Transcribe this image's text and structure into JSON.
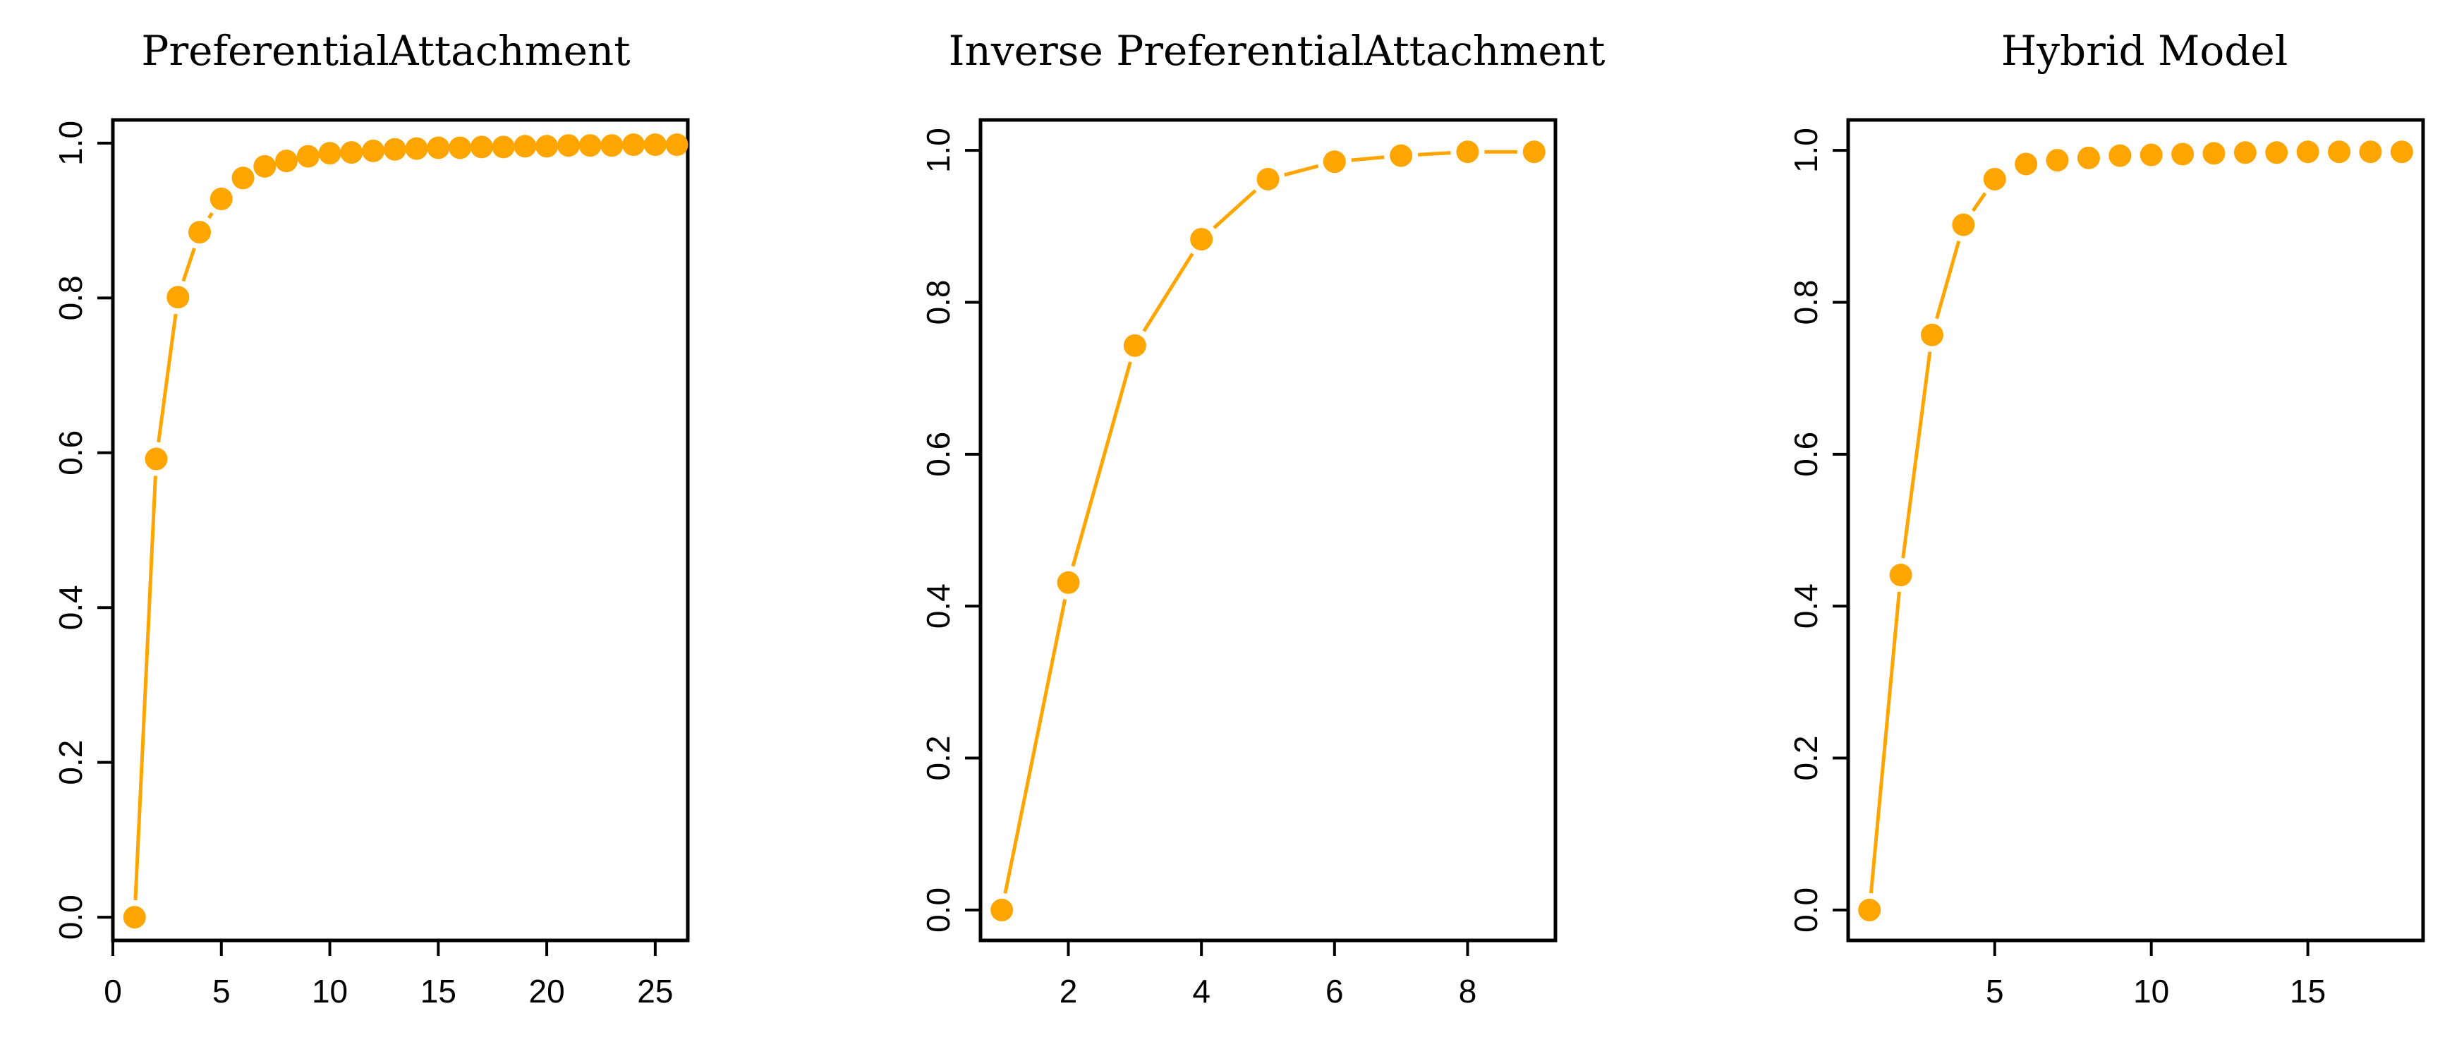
{
  "figure": {
    "marker_color": "#FFA500",
    "line_color": "#FFA500"
  },
  "chart_data": [
    {
      "type": "line",
      "title": "PreferentialAttachment",
      "xlabel": "",
      "ylabel": "",
      "x": [
        1,
        2,
        3,
        4,
        5,
        6,
        7,
        8,
        9,
        10,
        11,
        12,
        13,
        14,
        15,
        16,
        17,
        18,
        19,
        20,
        21,
        22,
        23,
        24,
        25,
        26
      ],
      "y": [
        0.0,
        0.592,
        0.801,
        0.885,
        0.928,
        0.955,
        0.97,
        0.977,
        0.983,
        0.987,
        0.988,
        0.99,
        0.992,
        0.993,
        0.994,
        0.994,
        0.995,
        0.995,
        0.996,
        0.996,
        0.997,
        0.997,
        0.997,
        0.998,
        0.998,
        0.998
      ],
      "xlim": [
        0,
        26.5
      ],
      "ylim": [
        -0.03,
        1.03
      ],
      "xticks": [
        0,
        5,
        10,
        15,
        20,
        25
      ],
      "yticks": [
        0.0,
        0.2,
        0.4,
        0.6,
        0.8,
        1.0
      ],
      "xtick_labels": [
        "0",
        "5",
        "10",
        "15",
        "20",
        "25"
      ],
      "ytick_labels": [
        "0.0",
        "0.2",
        "0.4",
        "0.6",
        "0.8",
        "1.0"
      ],
      "grid": false,
      "legend": false
    },
    {
      "type": "line",
      "title": "Inverse PreferentialAttachment",
      "xlabel": "",
      "ylabel": "",
      "x": [
        1,
        2,
        3,
        4,
        5,
        6,
        7,
        8,
        9
      ],
      "y": [
        0.0,
        0.431,
        0.743,
        0.883,
        0.962,
        0.985,
        0.993,
        0.998,
        0.998
      ],
      "xlim": [
        0.68,
        9.32
      ],
      "ylim": [
        -0.04,
        1.04
      ],
      "xticks": [
        2,
        4,
        6,
        8
      ],
      "yticks": [
        0.0,
        0.2,
        0.4,
        0.6,
        0.8,
        1.0
      ],
      "xtick_labels": [
        "2",
        "4",
        "6",
        "8"
      ],
      "ytick_labels": [
        "0.0",
        "0.2",
        "0.4",
        "0.6",
        "0.8",
        "1.0"
      ],
      "grid": false,
      "legend": false
    },
    {
      "type": "line",
      "title": "Hybrid Model",
      "xlabel": "",
      "ylabel": "",
      "x": [
        1,
        2,
        3,
        4,
        5,
        6,
        7,
        8,
        9,
        10,
        11,
        12,
        13,
        14,
        15,
        16,
        17,
        18
      ],
      "y": [
        0.0,
        0.441,
        0.757,
        0.902,
        0.962,
        0.982,
        0.987,
        0.99,
        0.993,
        0.994,
        0.995,
        0.996,
        0.997,
        0.997,
        0.998,
        0.998,
        0.998,
        0.998
      ],
      "xlim": [
        0.32,
        18.68
      ],
      "ylim": [
        -0.04,
        1.04
      ],
      "xticks": [
        5,
        10,
        15
      ],
      "yticks": [
        0.0,
        0.2,
        0.4,
        0.6,
        0.8,
        1.0
      ],
      "xtick_labels": [
        "5",
        "10",
        "15"
      ],
      "ytick_labels": [
        "0.0",
        "0.2",
        "0.4",
        "0.6",
        "0.8",
        "1.0"
      ],
      "grid": false,
      "legend": false
    }
  ]
}
